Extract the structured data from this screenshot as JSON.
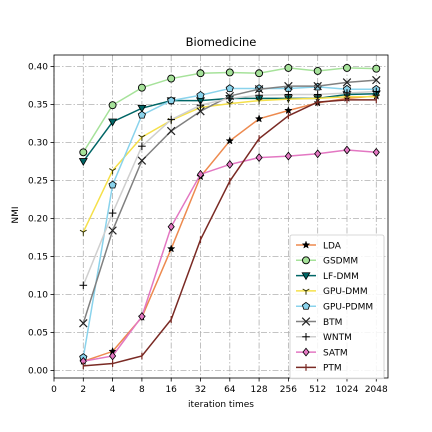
{
  "chart_data": {
    "type": "line",
    "title": "Biomedicine",
    "xlabel": "iteration times",
    "ylabel": "NMI",
    "x_tick_labels": [
      "0",
      "2",
      "4",
      "8",
      "16",
      "32",
      "64",
      "128",
      "256",
      "512",
      "1024",
      "2048"
    ],
    "x_tick_positions": [
      0,
      1,
      2,
      3,
      4,
      5,
      6,
      7,
      8,
      9,
      10,
      11
    ],
    "x_range": [
      0,
      11.4
    ],
    "ylim": [
      -0.01,
      0.415
    ],
    "y_ticks": [
      0.0,
      0.05,
      0.1,
      0.15,
      0.2,
      0.25,
      0.3,
      0.35,
      0.4
    ],
    "y_tick_labels": [
      "0.00",
      "0.05",
      "0.10",
      "0.15",
      "0.20",
      "0.25",
      "0.30",
      "0.35",
      "0.40"
    ],
    "grid": true,
    "legend_position": "lower-right",
    "x": [
      1,
      2,
      3,
      4,
      5,
      6,
      7,
      8,
      9,
      10,
      11
    ],
    "series": [
      {
        "name": "LDA",
        "color": "#ed8a4f",
        "marker": "star",
        "markerColor": "#000000",
        "values": [
          0.012,
          0.025,
          0.07,
          0.16,
          0.255,
          0.302,
          0.331,
          0.342,
          0.352,
          0.358,
          0.361
        ]
      },
      {
        "name": "GSDMM",
        "color": "#a6e29a",
        "marker": "circle",
        "markerColor": "#a6e29a",
        "values": [
          0.287,
          0.349,
          0.372,
          0.384,
          0.391,
          0.392,
          0.391,
          0.398,
          0.394,
          0.398,
          0.397
        ]
      },
      {
        "name": "LF-DMM",
        "color": "#006666",
        "marker": "triangle-down",
        "markerColor": "#006666",
        "values": [
          0.275,
          0.327,
          0.345,
          0.355,
          0.355,
          0.358,
          0.358,
          0.358,
          0.358,
          0.363,
          0.364
        ]
      },
      {
        "name": "GPU-DMM",
        "color": "#f5e04a",
        "marker": "tri-down",
        "markerColor": "#333300",
        "values": [
          0.182,
          0.263,
          0.307,
          0.329,
          0.346,
          0.351,
          0.355,
          0.357,
          0.358,
          0.36,
          0.36
        ]
      },
      {
        "name": "GPU-PDMM",
        "color": "#8ad3ec",
        "marker": "pentagon",
        "markerColor": "#8ad3ec",
        "values": [
          0.017,
          0.244,
          0.336,
          0.355,
          0.362,
          0.371,
          0.371,
          0.371,
          0.373,
          0.37,
          0.37
        ]
      },
      {
        "name": "BTM",
        "color": "#808080",
        "marker": "x",
        "markerColor": "#222222",
        "values": [
          0.062,
          0.184,
          0.276,
          0.315,
          0.341,
          0.361,
          0.37,
          0.374,
          0.374,
          0.379,
          0.382
        ]
      },
      {
        "name": "WNTM",
        "color": "#cfcfcf",
        "marker": "plus",
        "markerColor": "#000000",
        "values": [
          0.112,
          0.207,
          0.295,
          0.33,
          0.349,
          0.358,
          0.362,
          0.363,
          0.363,
          0.365,
          0.367
        ]
      },
      {
        "name": "SATM",
        "color": "#e377c2",
        "marker": "diamond",
        "markerColor": "#e377c2",
        "values": [
          0.012,
          0.019,
          0.071,
          0.189,
          0.258,
          0.271,
          0.28,
          0.282,
          0.285,
          0.29,
          0.287
        ]
      },
      {
        "name": "PTM",
        "color": "#7a2a24",
        "marker": "tick",
        "markerColor": "#7a2a24",
        "values": [
          0.006,
          0.009,
          0.019,
          0.067,
          0.172,
          0.249,
          0.305,
          0.335,
          0.353,
          0.356,
          0.356
        ]
      }
    ]
  }
}
